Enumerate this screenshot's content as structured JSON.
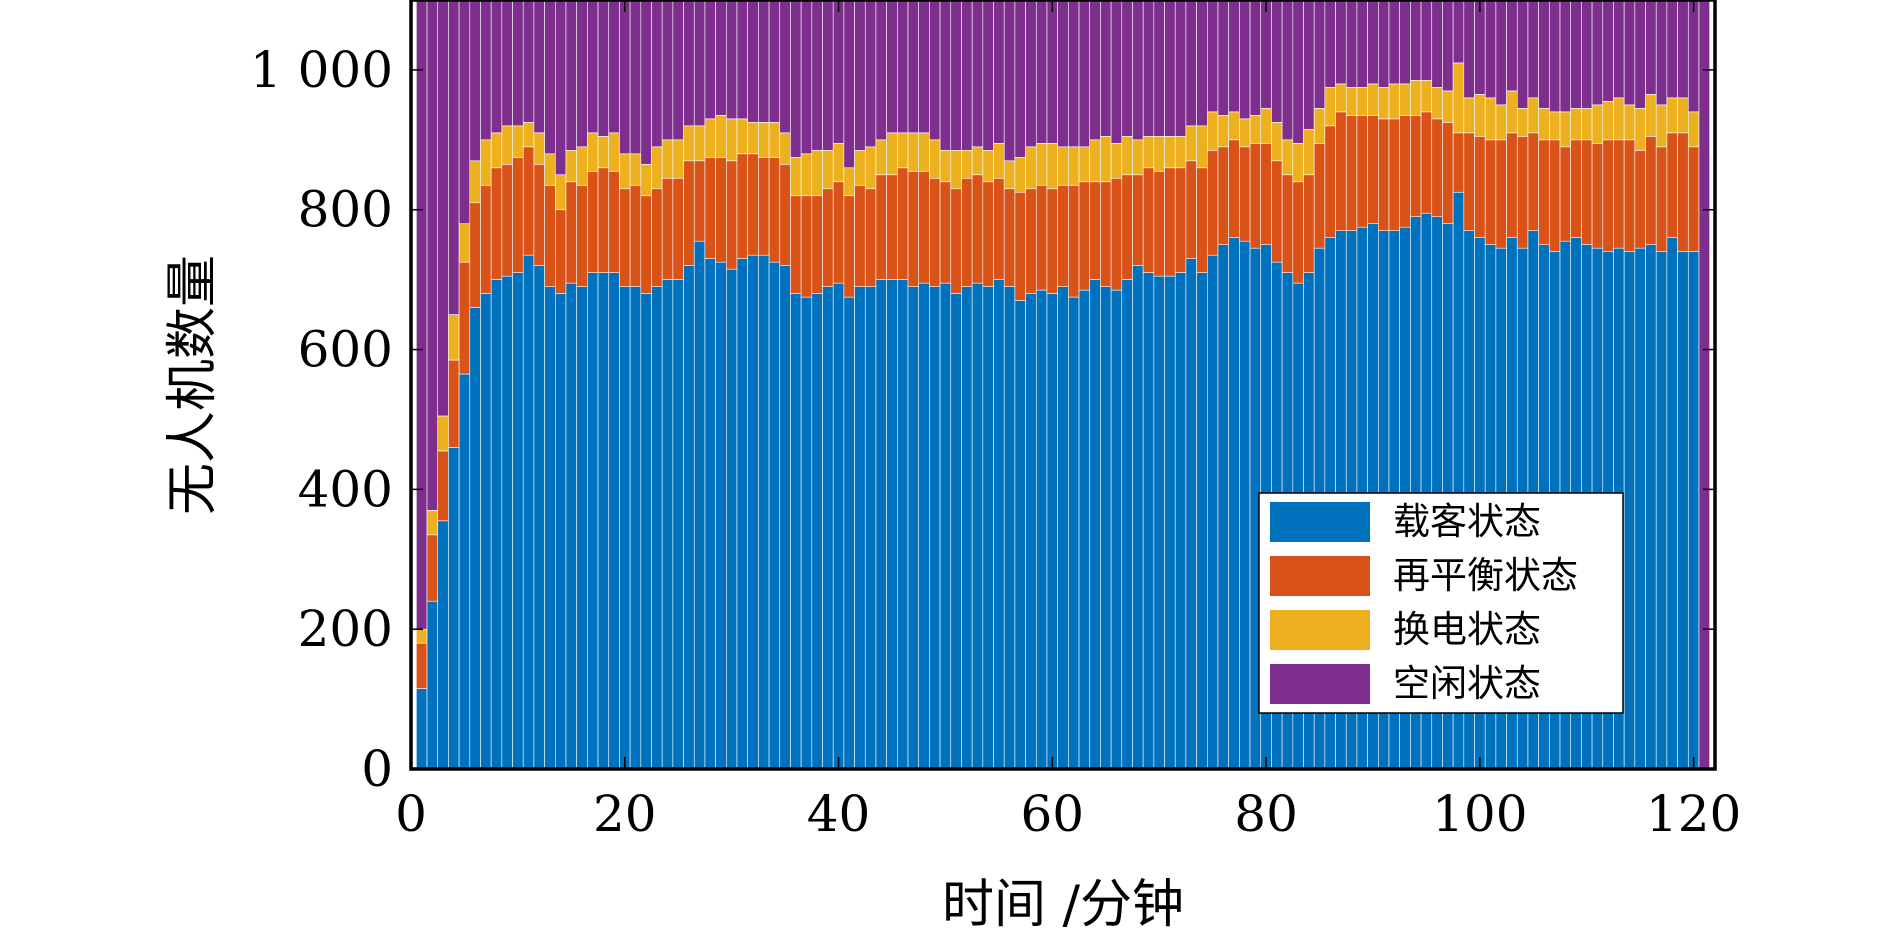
{
  "chart_data": {
    "type": "bar",
    "stacked": true,
    "xlabel": "时间 /分钟",
    "ylabel": "无人机数量",
    "xlim": [
      0,
      122
    ],
    "ylim": [
      0,
      1100
    ],
    "x_ticks": [
      0,
      20,
      40,
      60,
      80,
      100,
      120
    ],
    "x_tick_labels": [
      "0",
      "20",
      "40",
      "60",
      "80",
      "100",
      "120"
    ],
    "y_ticks": [
      0,
      200,
      400,
      600,
      800,
      1000
    ],
    "y_tick_labels": [
      "0",
      "200",
      "400",
      "600",
      "800",
      "1 000"
    ],
    "grid": false,
    "legend_position": "bottom-right",
    "total_fleet": 1100,
    "x": [
      1,
      2,
      3,
      4,
      5,
      6,
      7,
      8,
      9,
      10,
      11,
      12,
      13,
      14,
      15,
      16,
      17,
      18,
      19,
      20,
      21,
      22,
      23,
      24,
      25,
      26,
      27,
      28,
      29,
      30,
      31,
      32,
      33,
      34,
      35,
      36,
      37,
      38,
      39,
      40,
      41,
      42,
      43,
      44,
      45,
      46,
      47,
      48,
      49,
      50,
      51,
      52,
      53,
      54,
      55,
      56,
      57,
      58,
      59,
      60,
      61,
      62,
      63,
      64,
      65,
      66,
      67,
      68,
      69,
      70,
      71,
      72,
      73,
      74,
      75,
      76,
      77,
      78,
      79,
      80,
      81,
      82,
      83,
      84,
      85,
      86,
      87,
      88,
      89,
      90,
      91,
      92,
      93,
      94,
      95,
      96,
      97,
      98,
      99,
      100,
      101,
      102,
      103,
      104,
      105,
      106,
      107,
      108,
      109,
      110,
      111,
      112,
      113,
      114,
      115,
      116,
      117,
      118,
      119,
      120,
      121
    ],
    "series": [
      {
        "name": "载客状态",
        "color": "#0072BD",
        "values": [
          115,
          240,
          355,
          460,
          565,
          660,
          680,
          700,
          705,
          710,
          735,
          720,
          690,
          680,
          695,
          690,
          710,
          710,
          710,
          690,
          690,
          680,
          690,
          700,
          700,
          720,
          755,
          730,
          725,
          715,
          730,
          735,
          735,
          725,
          720,
          680,
          675,
          680,
          690,
          695,
          675,
          690,
          690,
          700,
          700,
          700,
          690,
          695,
          690,
          695,
          680,
          690,
          695,
          690,
          700,
          690,
          670,
          680,
          685,
          680,
          690,
          675,
          685,
          700,
          690,
          685,
          700,
          720,
          710,
          705,
          705,
          710,
          730,
          710,
          735,
          750,
          760,
          755,
          745,
          750,
          725,
          710,
          695,
          710,
          745,
          760,
          770,
          770,
          775,
          780,
          770,
          770,
          775,
          790,
          795,
          790,
          780,
          825,
          770,
          760,
          750,
          745,
          760,
          745,
          770,
          750,
          740,
          755,
          760,
          750,
          745,
          740,
          745,
          740,
          745,
          750,
          740,
          760,
          740,
          740,
          0
        ]
      },
      {
        "name": "再平衡状态",
        "color": "#D95319",
        "values": [
          65,
          95,
          100,
          125,
          160,
          150,
          155,
          160,
          160,
          165,
          155,
          145,
          145,
          120,
          145,
          145,
          145,
          150,
          145,
          140,
          145,
          140,
          140,
          145,
          145,
          150,
          115,
          145,
          150,
          155,
          150,
          145,
          140,
          150,
          145,
          140,
          145,
          140,
          140,
          145,
          145,
          145,
          140,
          150,
          150,
          160,
          165,
          160,
          155,
          145,
          150,
          155,
          155,
          150,
          145,
          140,
          155,
          150,
          150,
          150,
          145,
          160,
          155,
          140,
          150,
          160,
          150,
          130,
          150,
          150,
          155,
          150,
          140,
          150,
          150,
          140,
          140,
          135,
          150,
          145,
          145,
          140,
          145,
          140,
          150,
          160,
          170,
          165,
          160,
          155,
          160,
          160,
          160,
          145,
          145,
          140,
          145,
          85,
          140,
          145,
          150,
          155,
          150,
          160,
          140,
          150,
          160,
          135,
          140,
          150,
          150,
          160,
          155,
          160,
          140,
          155,
          150,
          150,
          170,
          150,
          0
        ]
      },
      {
        "name": "换电状态",
        "color": "#EDB120",
        "values": [
          20,
          35,
          50,
          65,
          55,
          60,
          65,
          50,
          55,
          45,
          35,
          45,
          45,
          50,
          45,
          55,
          55,
          45,
          55,
          50,
          45,
          45,
          60,
          55,
          55,
          50,
          50,
          55,
          60,
          60,
          50,
          45,
          50,
          50,
          45,
          55,
          60,
          65,
          55,
          55,
          40,
          50,
          60,
          50,
          60,
          50,
          55,
          55,
          55,
          45,
          55,
          40,
          40,
          45,
          50,
          40,
          50,
          60,
          60,
          65,
          55,
          55,
          50,
          60,
          65,
          50,
          55,
          50,
          45,
          50,
          45,
          45,
          50,
          60,
          55,
          45,
          40,
          40,
          40,
          50,
          55,
          50,
          55,
          65,
          50,
          55,
          40,
          40,
          40,
          45,
          45,
          50,
          45,
          50,
          45,
          45,
          45,
          100,
          50,
          60,
          60,
          50,
          60,
          40,
          50,
          45,
          40,
          50,
          45,
          45,
          55,
          55,
          60,
          50,
          60,
          60,
          60,
          50,
          50,
          50,
          0
        ]
      },
      {
        "name": "空闲状态",
        "color": "#7E2F8E",
        "values": [
          900,
          730,
          595,
          450,
          320,
          230,
          200,
          190,
          180,
          180,
          175,
          190,
          220,
          250,
          215,
          210,
          190,
          195,
          190,
          220,
          220,
          235,
          210,
          200,
          200,
          180,
          180,
          170,
          165,
          170,
          170,
          175,
          175,
          175,
          190,
          225,
          220,
          215,
          215,
          205,
          240,
          215,
          210,
          200,
          190,
          190,
          190,
          190,
          200,
          215,
          215,
          215,
          210,
          215,
          205,
          230,
          225,
          210,
          205,
          205,
          210,
          210,
          210,
          200,
          195,
          205,
          195,
          200,
          195,
          195,
          195,
          195,
          180,
          180,
          160,
          165,
          160,
          170,
          165,
          155,
          175,
          200,
          205,
          185,
          155,
          125,
          120,
          125,
          125,
          120,
          125,
          120,
          120,
          115,
          115,
          125,
          130,
          90,
          140,
          135,
          140,
          150,
          130,
          155,
          140,
          155,
          160,
          160,
          155,
          155,
          150,
          145,
          140,
          150,
          155,
          135,
          150,
          140,
          140,
          160,
          1100
        ]
      }
    ]
  },
  "legend": {
    "items": [
      "载客状态",
      "再平衡状态",
      "换电状态",
      "空闲状态"
    ]
  }
}
